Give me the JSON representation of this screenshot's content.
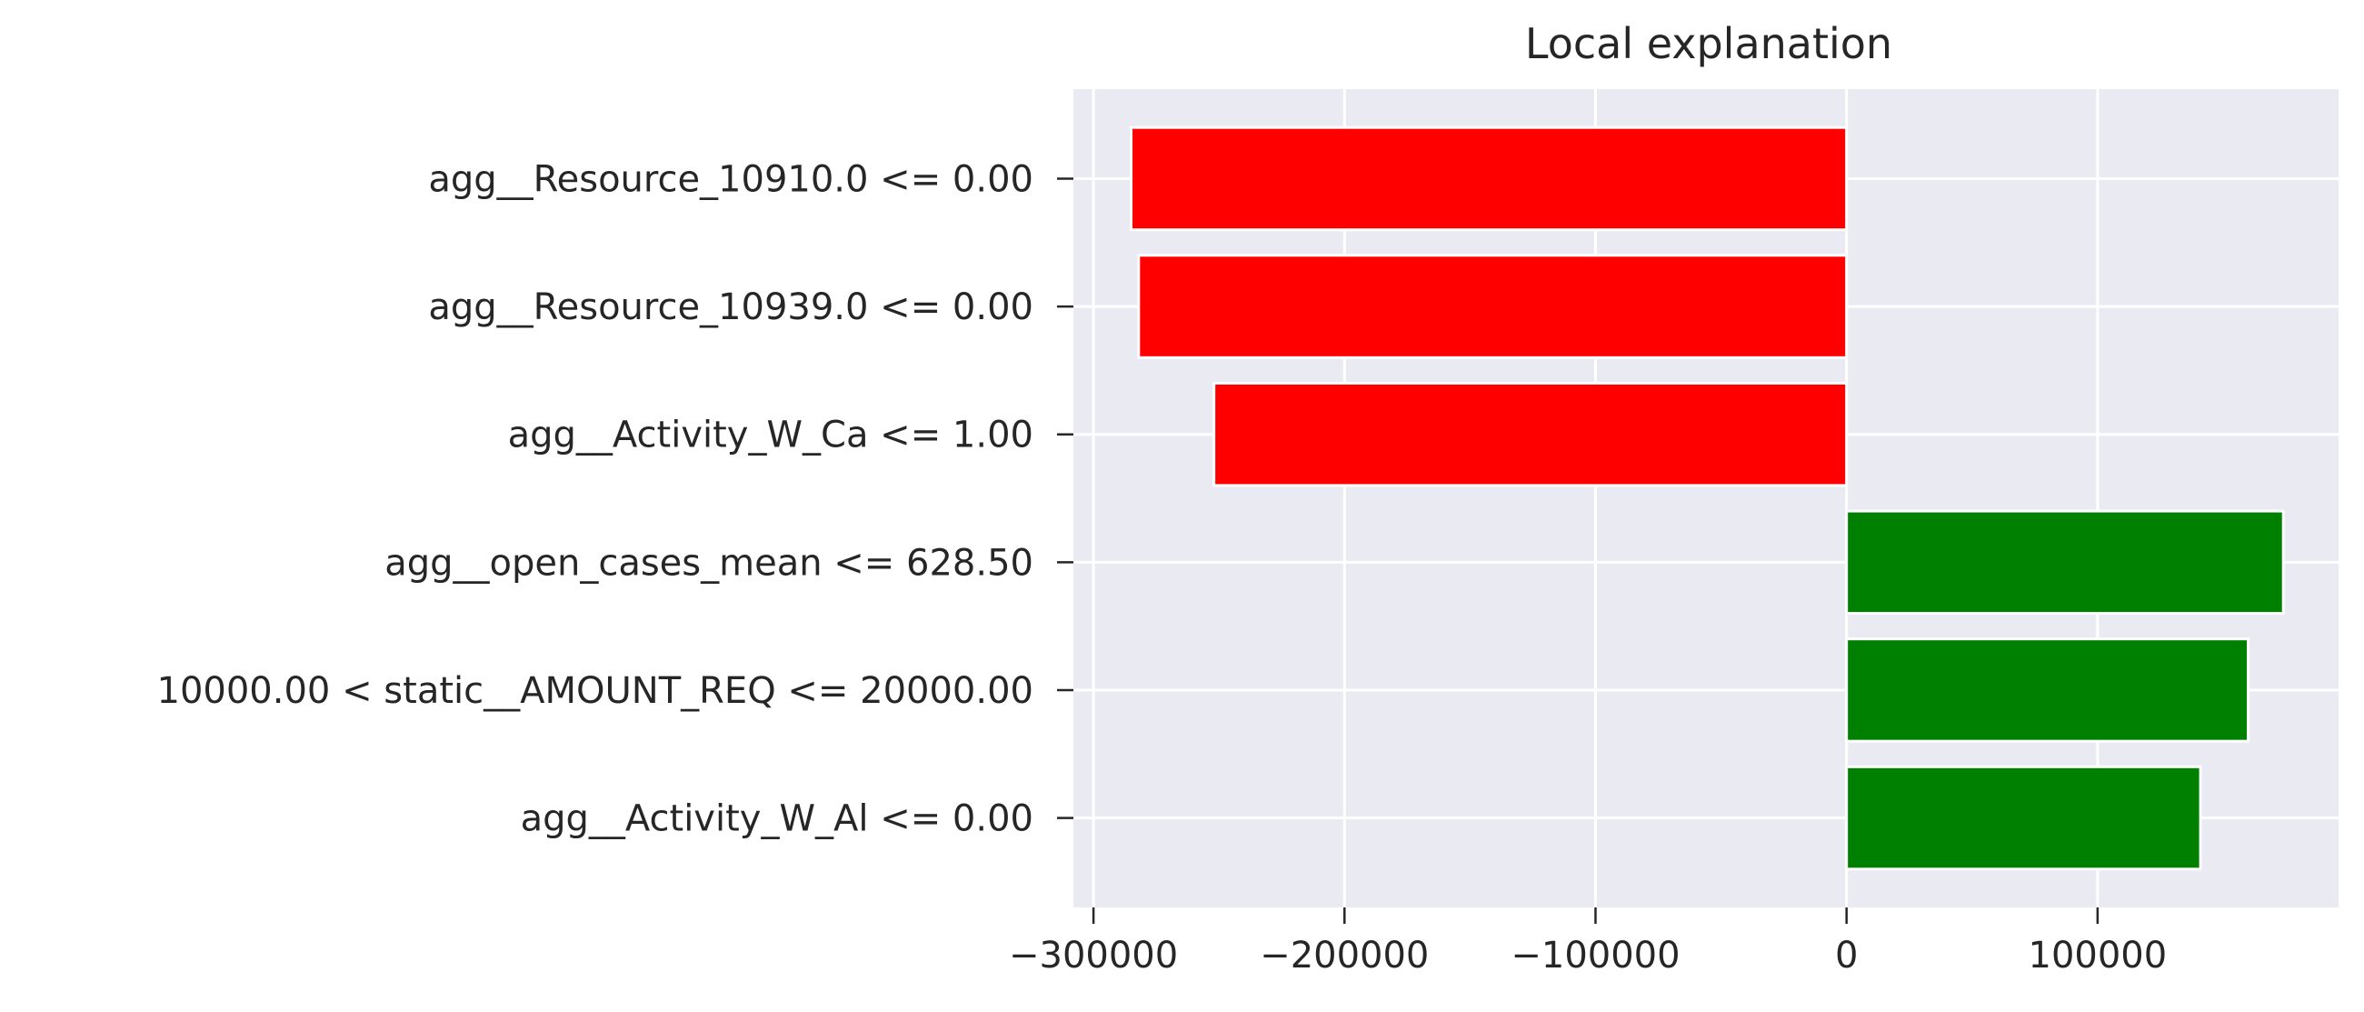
{
  "chart_data": {
    "type": "bar",
    "orientation": "horizontal",
    "title": "Local explanation",
    "xlabel": "",
    "ylabel": "",
    "categories": [
      "agg__Resource_10910.0 <= 0.00",
      "agg__Resource_10939.0 <= 0.00",
      "agg__Activity_W_Ca <= 1.00",
      "agg__open_cases_mean <= 628.50",
      "10000.00 < static__AMOUNT_REQ <= 20000.00",
      "agg__Activity_W_Al <= 0.00"
    ],
    "values": [
      -285000,
      -282000,
      -252000,
      174000,
      160000,
      141000
    ],
    "xlim": [
      -308000,
      196000
    ],
    "xticks": [
      -300000,
      -200000,
      -100000,
      0,
      100000
    ],
    "xtick_labels": [
      "−300000",
      "−200000",
      "−100000",
      "0",
      "100000"
    ],
    "grid": true,
    "colors": {
      "negative": "#ff0000",
      "positive": "#008000",
      "plot_background": "#eaeaf2",
      "grid": "#ffffff",
      "text": "#262626"
    }
  }
}
